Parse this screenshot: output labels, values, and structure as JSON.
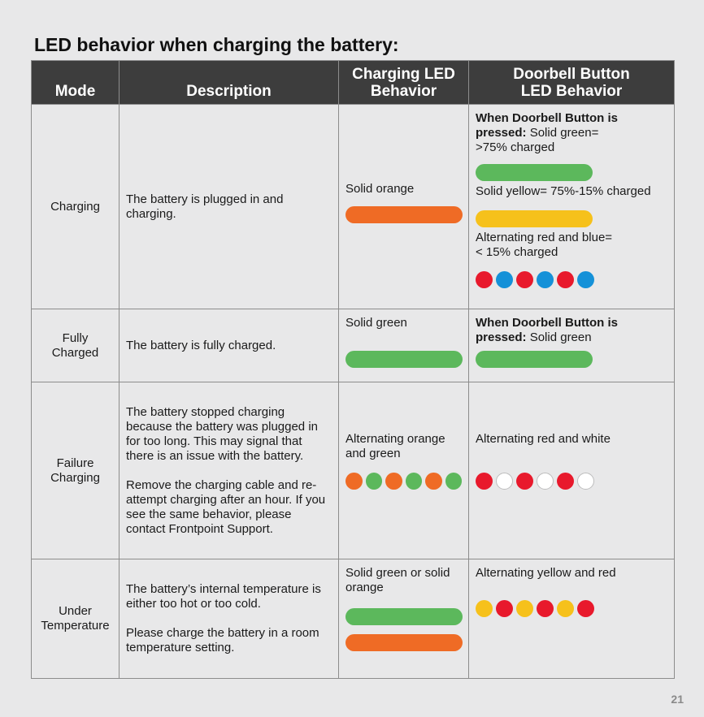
{
  "page_title": "LED behavior when charging the battery:",
  "colors": {
    "orange": "#ef6b25",
    "green": "#5cb85c",
    "yellow": "#f6c11b",
    "red": "#e8192c",
    "blue": "#1591d8",
    "white": "#ffffff",
    "header_bg": "#3d3d3d"
  },
  "headers": {
    "mode": "Mode",
    "description": "Description",
    "charging_led": "Charging LED\nBehavior",
    "doorbell_led": "Doorbell Button\nLED Behavior"
  },
  "rows": [
    {
      "mode": "Charging",
      "description": [
        "The battery is plugged in and charging."
      ],
      "charging_led": {
        "text": "Solid orange",
        "indicators": [
          {
            "kind": "bar",
            "color": "orange"
          }
        ]
      },
      "doorbell_led": {
        "bold_prefix": "When Doorbell Button is pressed:",
        "text": " Solid green=\n>75% charged",
        "indicators": [
          {
            "kind": "bar",
            "color": "green"
          }
        ],
        "segments": [
          {
            "text": "Solid yellow= 75%-15% charged",
            "indicators": [
              {
                "kind": "bar",
                "color": "yellow"
              }
            ]
          },
          {
            "text": "Alternating red and blue=\n< 15% charged",
            "indicators": [
              {
                "kind": "dots",
                "colors": [
                  "red",
                  "blue",
                  "red",
                  "blue",
                  "red",
                  "blue"
                ]
              }
            ]
          }
        ]
      }
    },
    {
      "mode": "Fully\nCharged",
      "description": [
        "The battery is fully charged."
      ],
      "charging_led": {
        "text": "Solid green",
        "indicators": [
          {
            "kind": "bar",
            "color": "green"
          }
        ]
      },
      "doorbell_led": {
        "bold_prefix": "When Doorbell Button is pressed:",
        "text": " Solid green",
        "indicators": [
          {
            "kind": "bar",
            "color": "green"
          }
        ],
        "segments": []
      }
    },
    {
      "mode": "Failure\nCharging",
      "description": [
        "The battery stopped charging because the battery was plugged in for too long. This may signal that there is an issue with the battery.",
        "Remove the charging cable and re-attempt charging after an hour. If you see the same behavior, please contact Frontpoint Support."
      ],
      "charging_led": {
        "text": "Alternating orange and green",
        "indicators": [
          {
            "kind": "dots",
            "colors": [
              "orange",
              "green",
              "orange",
              "green",
              "orange",
              "green"
            ]
          }
        ]
      },
      "doorbell_led": {
        "bold_prefix": "",
        "text": "Alternating red and white",
        "indicators": [
          {
            "kind": "dots",
            "colors": [
              "red",
              "white",
              "red",
              "white",
              "red",
              "white"
            ]
          }
        ],
        "segments": []
      }
    },
    {
      "mode": "Under\nTemperature",
      "description": [
        "The battery’s internal temperature is either too hot or too cold.",
        "Please charge the battery in a room temperature setting."
      ],
      "charging_led": {
        "text": "Solid green or solid orange",
        "indicators": [
          {
            "kind": "bar",
            "color": "green"
          },
          {
            "kind": "bar",
            "color": "orange"
          }
        ]
      },
      "doorbell_led": {
        "bold_prefix": "",
        "text": "Alternating yellow and red",
        "indicators": [
          {
            "kind": "dots",
            "colors": [
              "yellow",
              "red",
              "yellow",
              "red",
              "yellow",
              "red"
            ]
          }
        ],
        "segments": []
      }
    }
  ],
  "page_number": "21"
}
